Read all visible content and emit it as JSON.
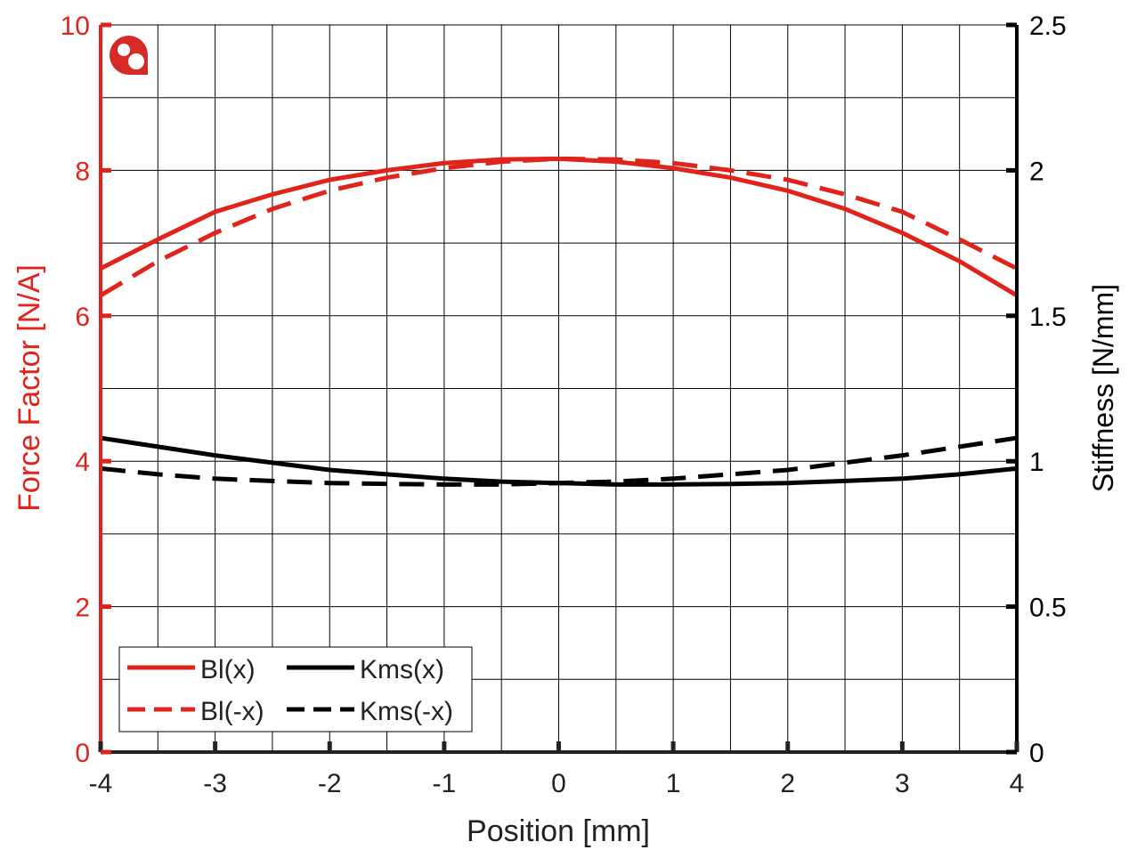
{
  "chart_data": {
    "type": "line",
    "xlabel": "Position [mm]",
    "ylabel_left": "Force Factor [N/A]",
    "ylabel_right": "Stiffness [N/mm]",
    "xlim": [
      -4,
      4
    ],
    "ylim_left": [
      0,
      10
    ],
    "ylim_right": [
      0,
      2.5
    ],
    "xticks": [
      "-4",
      "-3",
      "-2",
      "-1",
      "0",
      "1",
      "2",
      "3",
      "4"
    ],
    "yticks_left": [
      "0",
      "2",
      "4",
      "6",
      "8",
      "10"
    ],
    "yticks_right": [
      "0",
      "0.5",
      "1",
      "1.5",
      "2",
      "2.5"
    ],
    "grid": true,
    "legend_position": "bottom-left",
    "colors": {
      "left_axis": "#e0241b",
      "right_axis": "#000000"
    },
    "x": [
      -4,
      -3.5,
      -3,
      -2.5,
      -2,
      -1.5,
      -1,
      -0.5,
      0,
      0.5,
      1,
      1.5,
      2,
      2.5,
      3,
      3.5,
      4
    ],
    "series": [
      {
        "name": "Bl(x)",
        "axis": "left",
        "color": "#e0241b",
        "dash": false,
        "values": [
          6.65,
          7.05,
          7.43,
          7.67,
          7.87,
          8.0,
          8.1,
          8.15,
          8.16,
          8.12,
          8.03,
          7.9,
          7.72,
          7.47,
          7.14,
          6.75,
          6.28
        ]
      },
      {
        "name": "Bl(-x)",
        "axis": "left",
        "color": "#e0241b",
        "dash": true,
        "values": [
          6.28,
          6.75,
          7.14,
          7.47,
          7.72,
          7.9,
          8.03,
          8.12,
          8.16,
          8.15,
          8.1,
          8.0,
          7.87,
          7.67,
          7.43,
          7.05,
          6.65
        ]
      },
      {
        "name": "Kms(x)",
        "axis": "right",
        "color": "#000000",
        "dash": false,
        "values": [
          1.08,
          1.05,
          1.02,
          0.995,
          0.97,
          0.955,
          0.94,
          0.93,
          0.925,
          0.92,
          0.92,
          0.922,
          0.925,
          0.932,
          0.94,
          0.955,
          0.975
        ]
      },
      {
        "name": "Kms(-x)",
        "axis": "right",
        "color": "#000000",
        "dash": true,
        "values": [
          0.975,
          0.955,
          0.94,
          0.932,
          0.925,
          0.922,
          0.92,
          0.92,
          0.925,
          0.93,
          0.94,
          0.955,
          0.97,
          0.995,
          1.02,
          1.05,
          1.08
        ]
      }
    ]
  }
}
